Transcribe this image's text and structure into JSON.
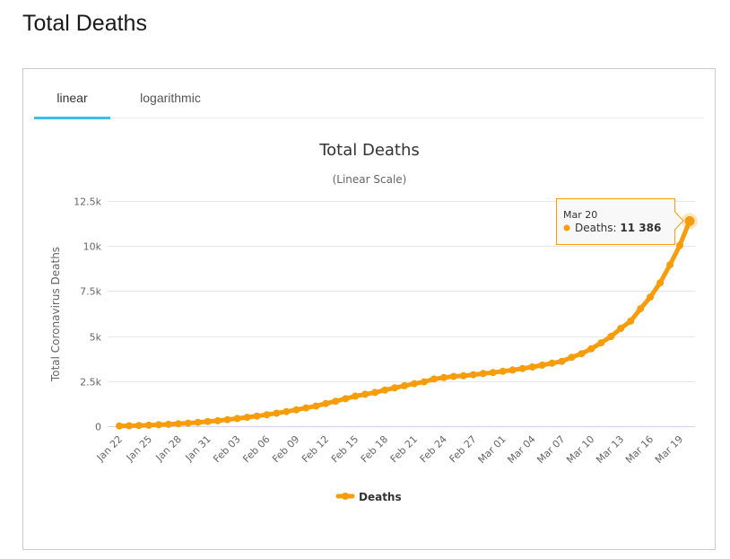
{
  "page": {
    "title": "Total Deaths"
  },
  "tabs": [
    {
      "label": "linear",
      "active": true
    },
    {
      "label": "logarithmic",
      "active": false
    }
  ],
  "colors": {
    "series": "#f79c0b",
    "tab_active": "#3bbfe8",
    "grid": "#e6e6e6",
    "axis": "#ccd6eb"
  },
  "tooltip": {
    "date": "Mar 20",
    "series_label": "Deaths: ",
    "value_text": "11 386"
  },
  "chart_data": {
    "type": "line",
    "title": "Total Deaths",
    "subtitle": "(Linear Scale)",
    "xlabel": "",
    "ylabel": "Total Coronavirus Deaths",
    "ylim": [
      0,
      12500
    ],
    "y_ticks": [
      0,
      2500,
      5000,
      7500,
      10000,
      12500
    ],
    "y_tick_labels": [
      "0",
      "2.5k",
      "5k",
      "7.5k",
      "10k",
      "12.5k"
    ],
    "x_tick_labels": [
      "Jan 22",
      "Jan 25",
      "Jan 28",
      "Jan 31",
      "Feb 03",
      "Feb 06",
      "Feb 09",
      "Feb 12",
      "Feb 15",
      "Feb 18",
      "Feb 21",
      "Feb 24",
      "Feb 27",
      "Mar 01",
      "Mar 04",
      "Mar 07",
      "Mar 10",
      "Mar 13",
      "Mar 16",
      "Mar 19"
    ],
    "x_tick_every": 3,
    "grid": true,
    "legend": {
      "position": "bottom-center",
      "entries": [
        "Deaths"
      ]
    },
    "series": [
      {
        "name": "Deaths",
        "x": [
          "Jan 22",
          "Jan 23",
          "Jan 24",
          "Jan 25",
          "Jan 26",
          "Jan 27",
          "Jan 28",
          "Jan 29",
          "Jan 30",
          "Jan 31",
          "Feb 01",
          "Feb 02",
          "Feb 03",
          "Feb 04",
          "Feb 05",
          "Feb 06",
          "Feb 07",
          "Feb 08",
          "Feb 09",
          "Feb 10",
          "Feb 11",
          "Feb 12",
          "Feb 13",
          "Feb 14",
          "Feb 15",
          "Feb 16",
          "Feb 17",
          "Feb 18",
          "Feb 19",
          "Feb 20",
          "Feb 21",
          "Feb 22",
          "Feb 23",
          "Feb 24",
          "Feb 25",
          "Feb 26",
          "Feb 27",
          "Feb 28",
          "Feb 29",
          "Mar 01",
          "Mar 02",
          "Mar 03",
          "Mar 04",
          "Mar 05",
          "Mar 06",
          "Mar 07",
          "Mar 08",
          "Mar 09",
          "Mar 10",
          "Mar 11",
          "Mar 12",
          "Mar 13",
          "Mar 14",
          "Mar 15",
          "Mar 16",
          "Mar 17",
          "Mar 18",
          "Mar 19",
          "Mar 20"
        ],
        "values": [
          17,
          25,
          41,
          56,
          80,
          106,
          132,
          170,
          213,
          259,
          304,
          362,
          426,
          492,
          565,
          638,
          724,
          813,
          910,
          1018,
          1115,
          1261,
          1383,
          1526,
          1669,
          1775,
          1873,
          2009,
          2126,
          2247,
          2360,
          2460,
          2618,
          2699,
          2763,
          2800,
          2858,
          2923,
          2977,
          3050,
          3117,
          3202,
          3285,
          3387,
          3494,
          3599,
          3827,
          4025,
          4296,
          4628,
          4981,
          5428,
          5833,
          6520,
          7164,
          7958,
          8958,
          10033,
          11386
        ]
      }
    ]
  }
}
